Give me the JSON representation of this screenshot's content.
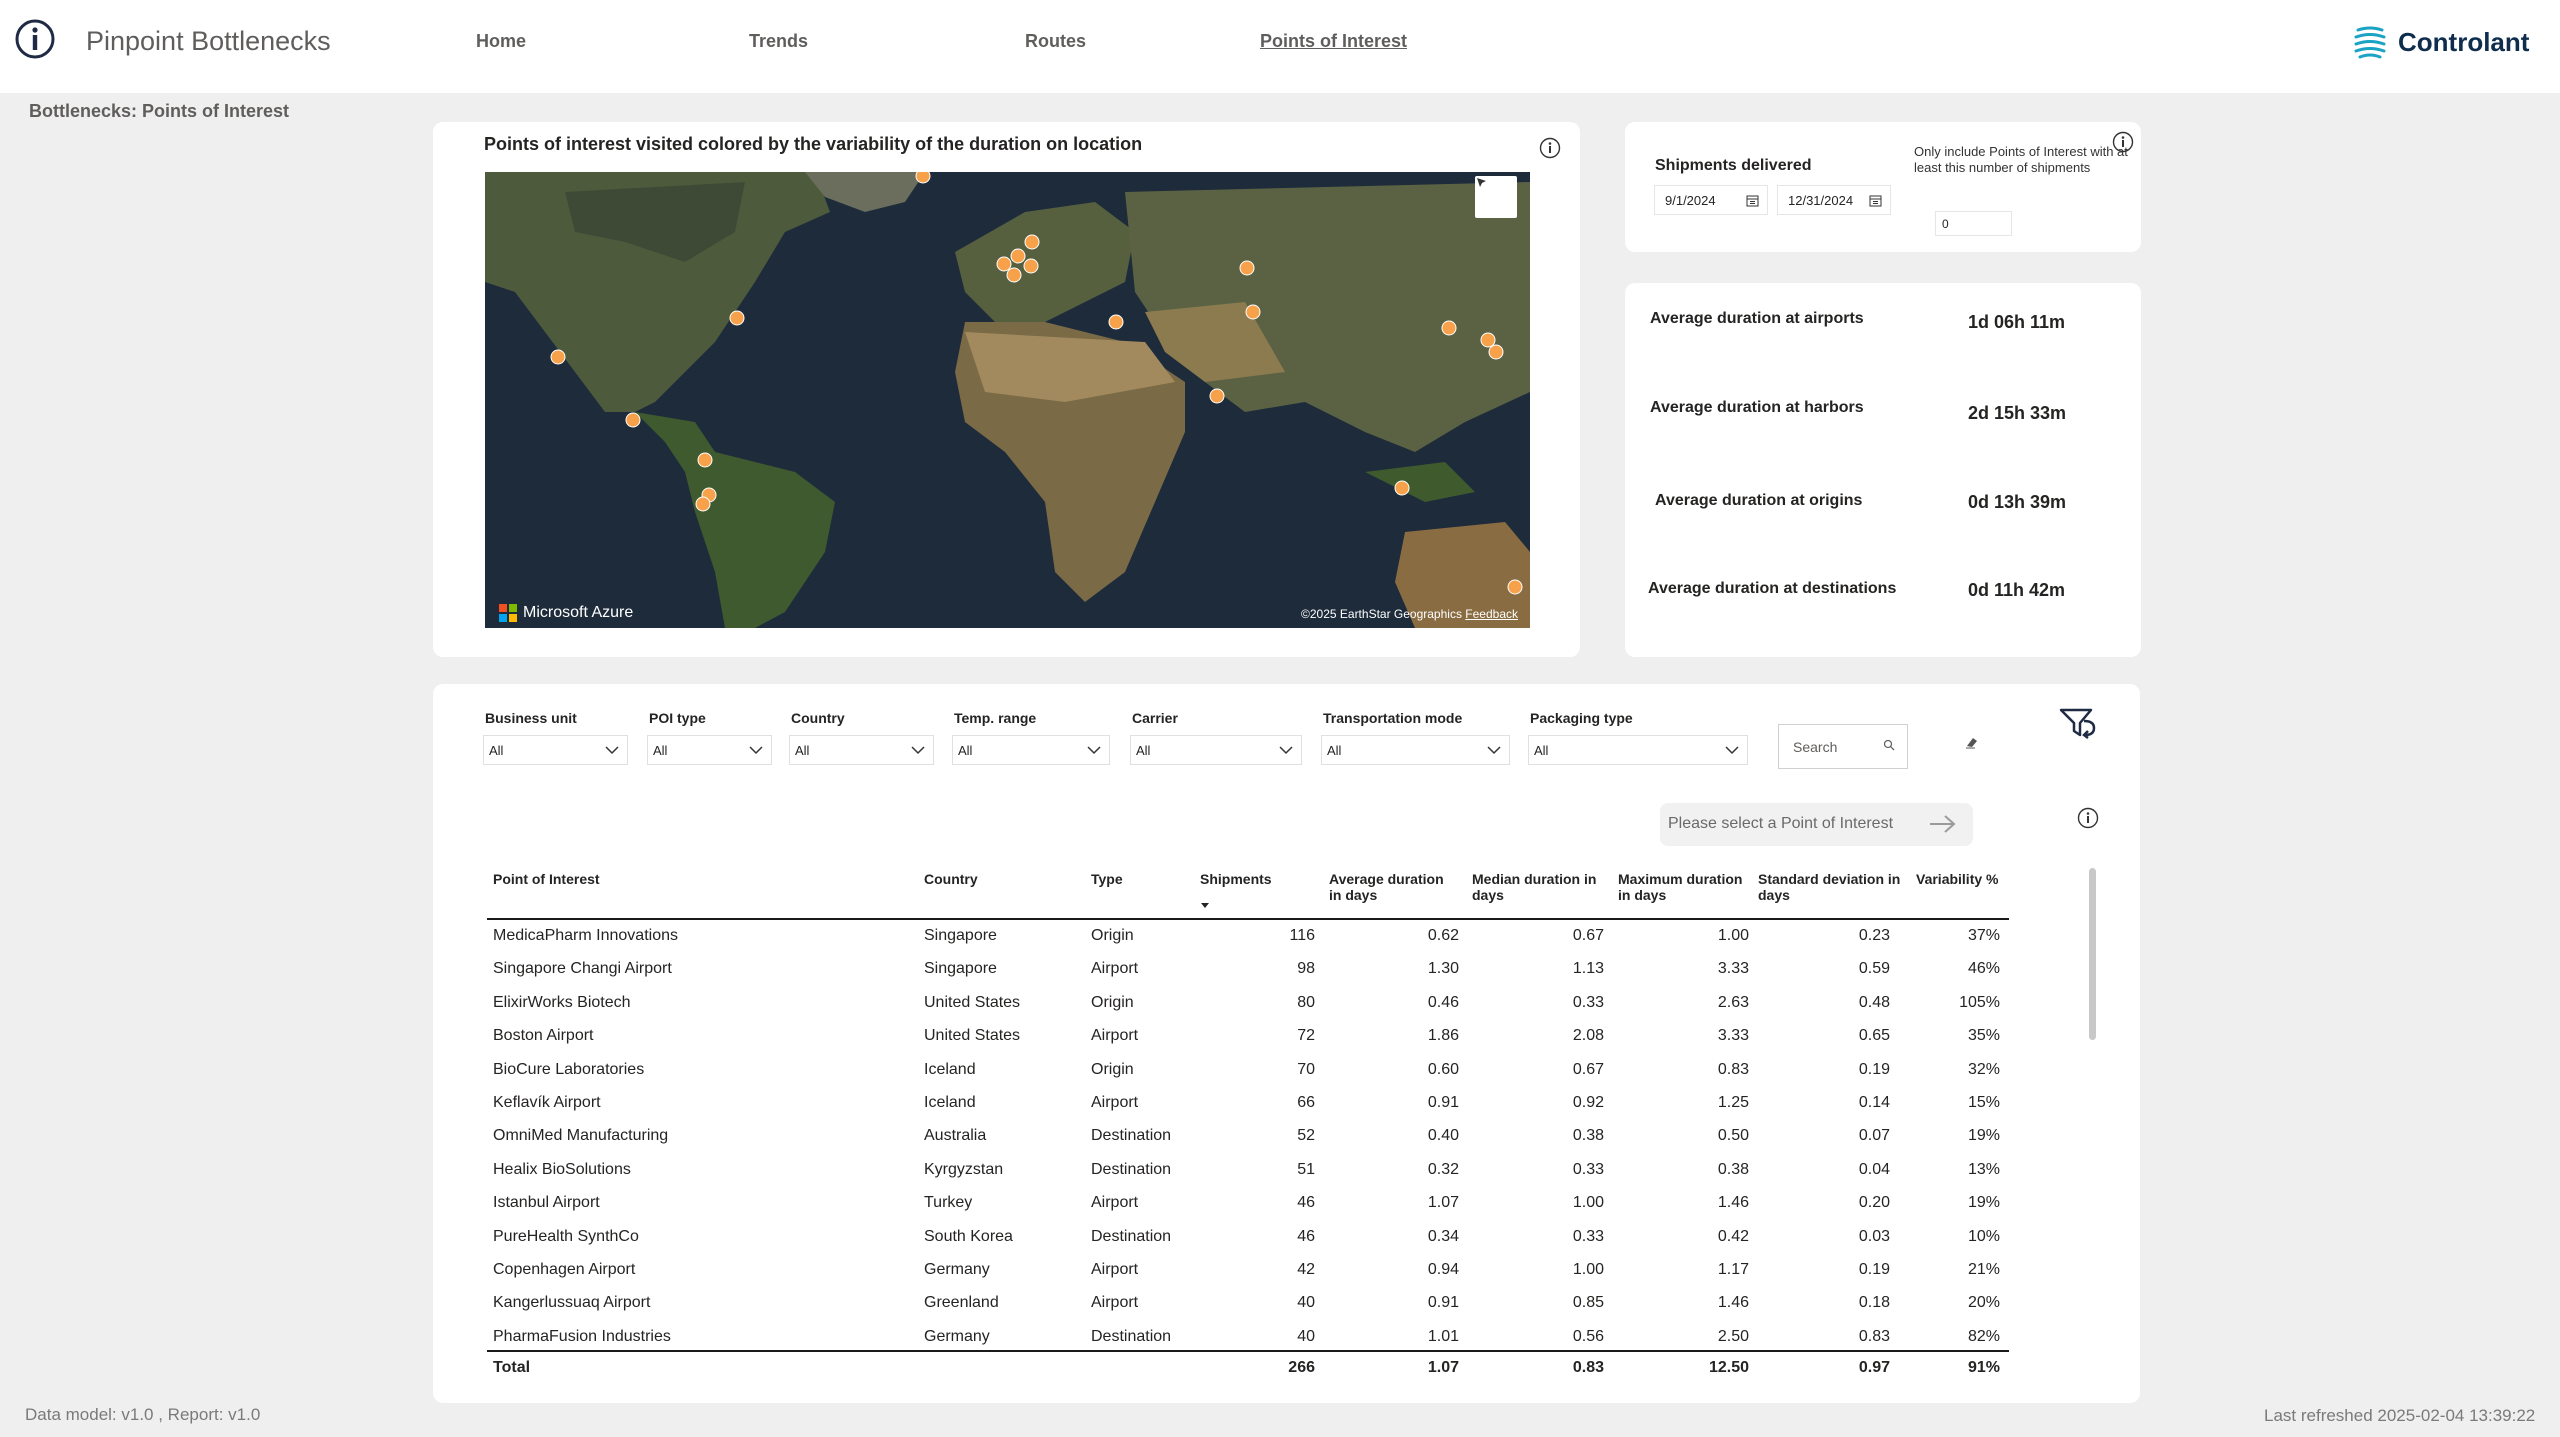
{
  "header": {
    "app_title": "Pinpoint Bottlenecks",
    "nav": [
      "Home",
      "Trends",
      "Routes",
      "Points of Interest"
    ],
    "active_nav": "Points of Interest",
    "brand_name": "Controlant"
  },
  "page_label": "Bottlenecks: Points of Interest",
  "map": {
    "title": "Points of interest visited colored by the variability of the duration on location",
    "provider": "Microsoft Azure",
    "copyright": "©2025 EarthStar Geographics",
    "feedback": "Feedback",
    "marker_color": "#f7a24a"
  },
  "shipments_filter": {
    "label": "Shipments delivered",
    "start_date": "9/1/2024",
    "end_date": "12/31/2024",
    "poi_note": "Only include Points of Interest with at least this number of shipments",
    "min_shipments": "0"
  },
  "kpis": [
    {
      "label": "Average duration at airports",
      "value": "1d 06h 11m"
    },
    {
      "label": "Average duration at harbors",
      "value": "2d 15h 33m"
    },
    {
      "label": "Average duration at origins",
      "value": "0d 13h 39m"
    },
    {
      "label": "Average duration at destinations",
      "value": "0d 11h 42m"
    }
  ],
  "filters": [
    {
      "label": "Business unit",
      "value": "All"
    },
    {
      "label": "POI type",
      "value": "All"
    },
    {
      "label": "Country",
      "value": "All"
    },
    {
      "label": "Temp. range",
      "value": "All"
    },
    {
      "label": "Carrier",
      "value": "All"
    },
    {
      "label": "Transportation mode",
      "value": "All"
    },
    {
      "label": "Packaging type",
      "value": "All"
    }
  ],
  "search": {
    "placeholder": "Search"
  },
  "poi_button": "Please select a Point of Interest",
  "table": {
    "columns": [
      "Point of Interest",
      "Country",
      "Type",
      "Shipments",
      "Average duration in days",
      "Median duration in days",
      "Maximum duration in days",
      "Standard deviation in days",
      "Variability %"
    ],
    "rows": [
      [
        "MedicaPharm Innovations",
        "Singapore",
        "Origin",
        "116",
        "0.62",
        "0.67",
        "1.00",
        "0.23",
        "37%"
      ],
      [
        "Singapore Changi Airport",
        "Singapore",
        "Airport",
        "98",
        "1.30",
        "1.13",
        "3.33",
        "0.59",
        "46%"
      ],
      [
        "ElixirWorks Biotech",
        "United States",
        "Origin",
        "80",
        "0.46",
        "0.33",
        "2.63",
        "0.48",
        "105%"
      ],
      [
        "Boston Airport",
        "United States",
        "Airport",
        "72",
        "1.86",
        "2.08",
        "3.33",
        "0.65",
        "35%"
      ],
      [
        "BioCure Laboratories",
        "Iceland",
        "Origin",
        "70",
        "0.60",
        "0.67",
        "0.83",
        "0.19",
        "32%"
      ],
      [
        "Keflavík Airport",
        "Iceland",
        "Airport",
        "66",
        "0.91",
        "0.92",
        "1.25",
        "0.14",
        "15%"
      ],
      [
        "OmniMed Manufacturing",
        "Australia",
        "Destination",
        "52",
        "0.40",
        "0.38",
        "0.50",
        "0.07",
        "19%"
      ],
      [
        "Healix BioSolutions",
        "Kyrgyzstan",
        "Destination",
        "51",
        "0.32",
        "0.33",
        "0.38",
        "0.04",
        "13%"
      ],
      [
        "Istanbul Airport",
        "Turkey",
        "Airport",
        "46",
        "1.07",
        "1.00",
        "1.46",
        "0.20",
        "19%"
      ],
      [
        "PureHealth SynthCo",
        "South Korea",
        "Destination",
        "46",
        "0.34",
        "0.33",
        "0.42",
        "0.03",
        "10%"
      ],
      [
        "Copenhagen Airport",
        "Germany",
        "Airport",
        "42",
        "0.94",
        "1.00",
        "1.17",
        "0.19",
        "21%"
      ],
      [
        "Kangerlussuaq Airport",
        "Greenland",
        "Airport",
        "40",
        "0.91",
        "0.85",
        "1.46",
        "0.18",
        "20%"
      ],
      [
        "PharmaFusion Industries",
        "Germany",
        "Destination",
        "40",
        "1.01",
        "0.56",
        "2.50",
        "0.83",
        "82%"
      ]
    ],
    "total": [
      "Total",
      "",
      "",
      "266",
      "1.07",
      "0.83",
      "12.50",
      "0.97",
      "91%"
    ]
  },
  "footer": {
    "versions": "Data model: v1.0 , Report: v1.0",
    "refreshed": "Last refreshed 2025-02-04 13:39:22"
  }
}
